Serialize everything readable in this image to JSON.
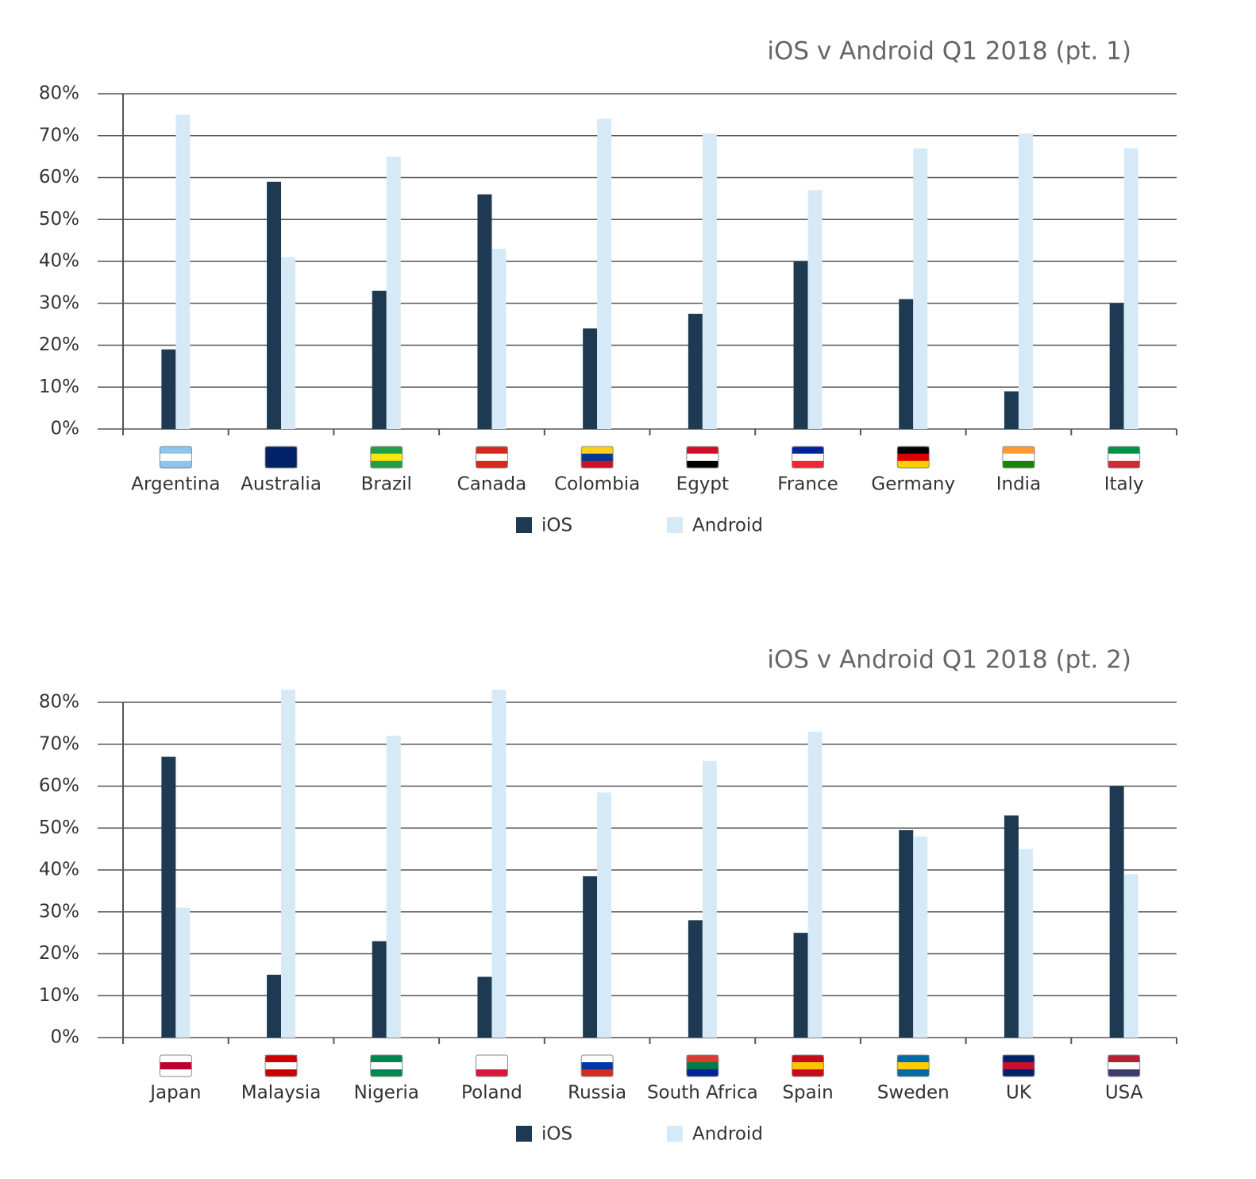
{
  "chart_data": [
    {
      "type": "bar",
      "title": "iOS v Android Q1 2018  (pt. 1)",
      "categories": [
        "Argentina",
        "Australia",
        "Brazil",
        "Canada",
        "Colombia",
        "Egypt",
        "France",
        "Germany",
        "India",
        "Italy"
      ],
      "series": [
        {
          "name": "iOS",
          "color": "#1e3a52",
          "values": [
            19,
            59,
            33,
            56,
            24,
            27.5,
            40,
            31,
            9,
            30
          ]
        },
        {
          "name": "Android",
          "color": "#d6e9f7",
          "values": [
            75,
            41,
            65,
            43,
            74,
            70.5,
            57,
            67,
            70.5,
            67
          ]
        }
      ],
      "ylim": [
        0,
        80
      ],
      "yticks": [
        {
          "value": 0,
          "label": "0%"
        },
        {
          "value": 10,
          "label": "10%"
        },
        {
          "value": 20,
          "label": "20%"
        },
        {
          "value": 30,
          "label": "30%"
        },
        {
          "value": 40,
          "label": "40%"
        },
        {
          "value": 50,
          "label": "50%"
        },
        {
          "value": 60,
          "label": "60%"
        },
        {
          "value": 70,
          "label": "70%"
        },
        {
          "value": 80,
          "label": "80%"
        }
      ],
      "grid": true,
      "legend": "bottom"
    },
    {
      "type": "bar",
      "title": "iOS v Android Q1 2018 (pt. 2)",
      "categories": [
        "Japan",
        "Malaysia",
        "Nigeria",
        "Poland",
        "Russia",
        "South Africa",
        "Spain",
        "Sweden",
        "UK",
        "USA"
      ],
      "series": [
        {
          "name": "iOS",
          "color": "#1e3a52",
          "values": [
            67,
            15,
            23,
            14.5,
            38.5,
            28,
            25,
            49.5,
            53,
            60
          ]
        },
        {
          "name": "Android",
          "color": "#d6e9f7",
          "values": [
            31,
            83,
            72,
            83,
            58.5,
            66,
            73,
            48,
            45,
            39
          ]
        }
      ],
      "ylim": [
        0,
        80
      ],
      "yticks": [
        {
          "value": 0,
          "label": "0%"
        },
        {
          "value": 10,
          "label": "10%"
        },
        {
          "value": 20,
          "label": "20%"
        },
        {
          "value": 30,
          "label": "30%"
        },
        {
          "value": 40,
          "label": "40%"
        },
        {
          "value": 50,
          "label": "50%"
        },
        {
          "value": 60,
          "label": "60%"
        },
        {
          "value": 70,
          "label": "70%"
        },
        {
          "value": 80,
          "label": "80%"
        }
      ],
      "grid": true,
      "legend": "bottom"
    }
  ]
}
